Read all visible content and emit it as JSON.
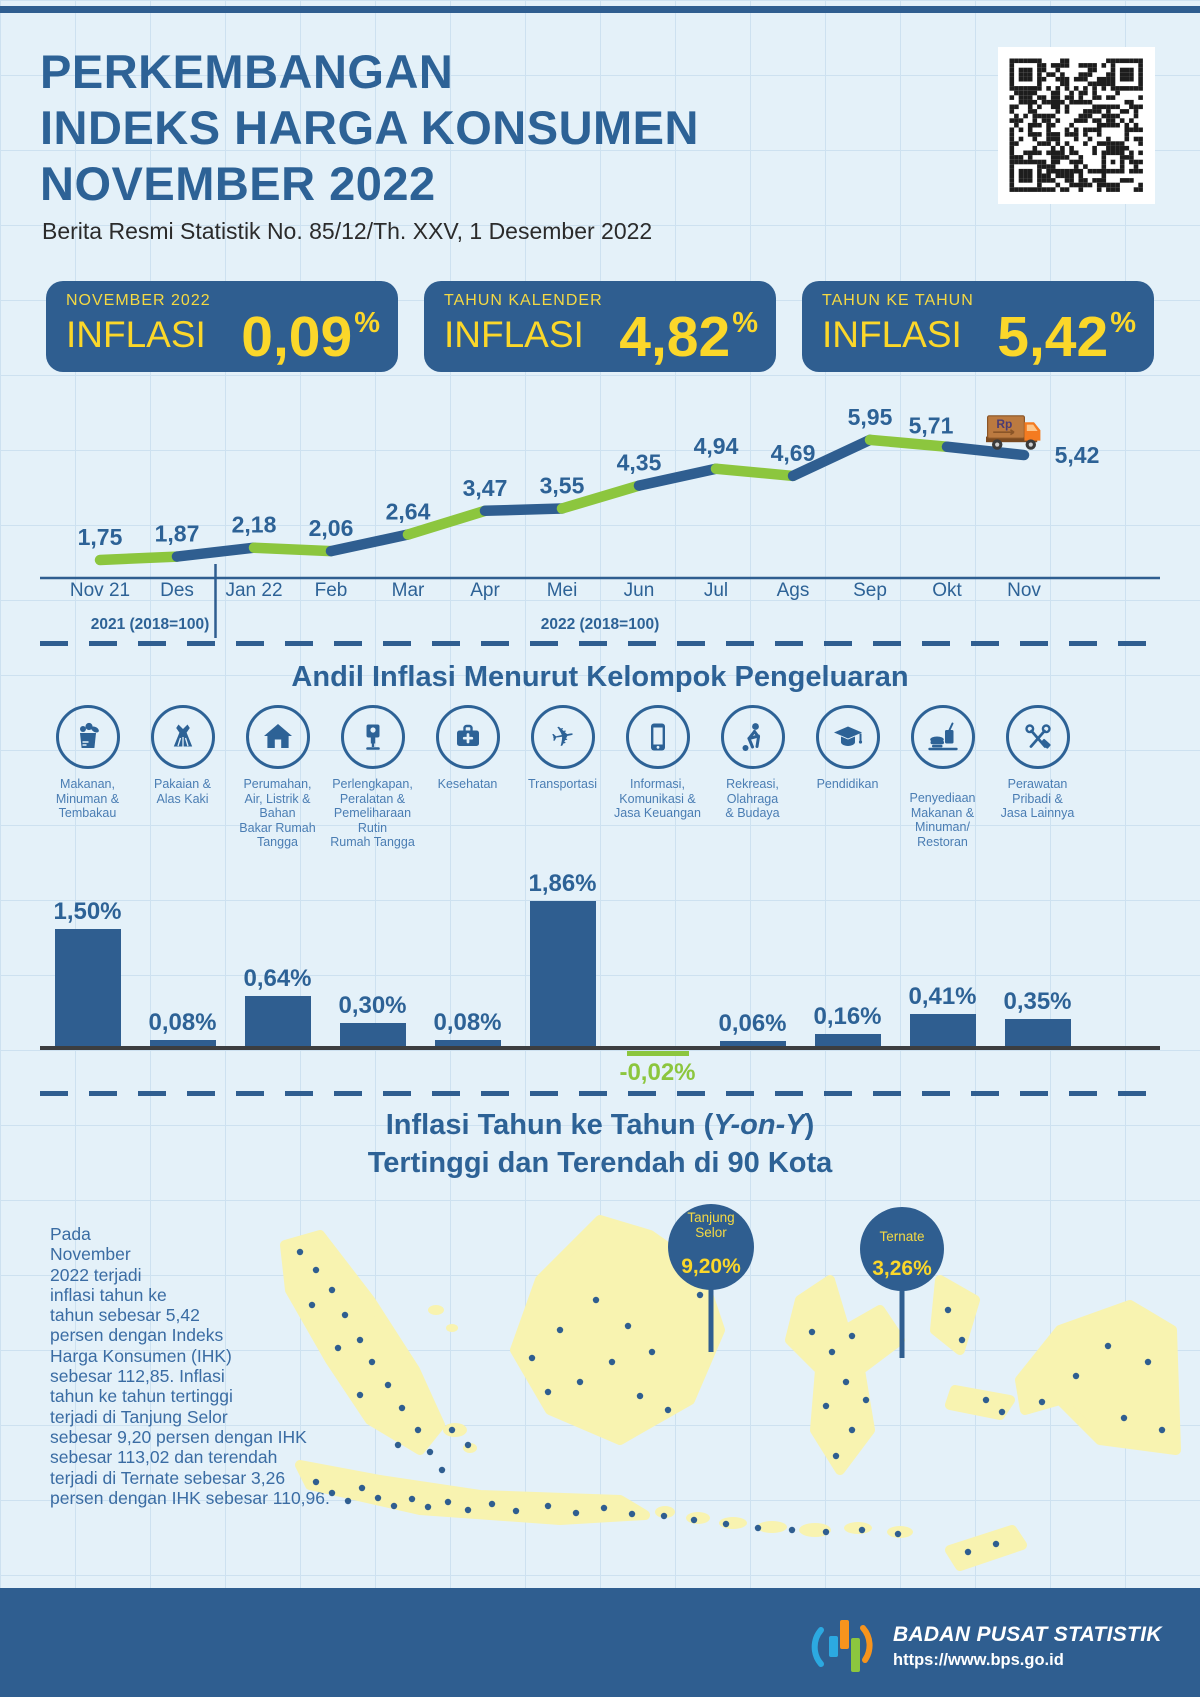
{
  "header": {
    "title_lines": [
      "PERKEMBANGAN",
      "INDEKS HARGA KONSUMEN",
      "NOVEMBER 2022"
    ],
    "subtitle": "Berita Resmi Statistik No. 85/12/Th. XXV, 1 Desember 2022",
    "qr_icon": "qr-code-icon"
  },
  "stat_cards": [
    {
      "period": "NOVEMBER 2022",
      "label": "INFLASI",
      "value": "0,09",
      "unit": "%"
    },
    {
      "period": "TAHUN KALENDER",
      "label": "INFLASI",
      "value": "4,82",
      "unit": "%"
    },
    {
      "period": "TAHUN KE TAHUN",
      "label": "INFLASI",
      "value": "5,42",
      "unit": "%"
    }
  ],
  "chart_data": [
    {
      "type": "line",
      "categories": [
        "Nov 21",
        "Des",
        "Jan 22",
        "Feb",
        "Mar",
        "Apr",
        "Mei",
        "Jun",
        "Jul",
        "Ags",
        "Sep",
        "Okt",
        "Nov"
      ],
      "values": [
        1.75,
        1.87,
        2.18,
        2.06,
        2.64,
        3.47,
        3.55,
        4.35,
        4.94,
        4.69,
        5.95,
        5.71,
        5.42
      ],
      "point_labels": [
        "1,75",
        "1,87",
        "2,18",
        "2,06",
        "2,64",
        "3,47",
        "3,55",
        "4,35",
        "4,94",
        "4,69",
        "5,95",
        "5,71",
        "5,42"
      ],
      "year_labels": [
        "2021 (2018=100)",
        "2022 (2018=100)"
      ],
      "ylim": [
        1.5,
        6.3
      ],
      "grid": "page-background",
      "legend_position": "none",
      "segment_colors": [
        "#8cc63e",
        "#2f5e90"
      ],
      "decoration": "rupiah-truck-icon"
    },
    {
      "type": "bar",
      "title": "Andil Inflasi Menurut Kelompok Pengeluaran",
      "categories": [
        "Makanan, Minuman & Tembakau",
        "Pakaian & Alas Kaki",
        "Perumahan, Air, Listrik & Bahan Bakar Rumah Tangga",
        "Perlengkapan, Peralatan & Pemeliharaan Rutin Rumah Tangga",
        "Kesehatan",
        "Transportasi",
        "Informasi, Komunikasi & Jasa Keuangan",
        "Rekreasi, Olahraga & Budaya",
        "Pendidikan",
        "Penyediaan Makanan & Minuman/Restoran",
        "Perawatan Pribadi & Jasa Lainnya"
      ],
      "values": [
        1.5,
        0.08,
        0.64,
        0.3,
        0.08,
        1.86,
        -0.02,
        0.06,
        0.16,
        0.41,
        0.35
      ],
      "value_labels": [
        "1,50%",
        "0,08%",
        "0,64%",
        "0,30%",
        "0,08%",
        "1,86%",
        "-0,02%",
        "0,06%",
        "0,16%",
        "0,41%",
        "0,35%"
      ],
      "bar_color": "#2f5e90",
      "negative_color": "#8cc63e",
      "xlabel": "",
      "ylabel": ""
    }
  ],
  "groups": [
    {
      "icon": "food-icon",
      "label": "Makanan,\nMinuman &\nTembakau"
    },
    {
      "icon": "clothing-icon",
      "label": "Pakaian &\nAlas Kaki"
    },
    {
      "icon": "housing-icon",
      "label": "Perumahan,\nAir, Listrik &\nBahan\nBakar Rumah\nTangga"
    },
    {
      "icon": "household-equipment-icon",
      "label": "Perlengkapan,\nPeralatan &\nPemeliharaan\nRutin\nRumah Tangga"
    },
    {
      "icon": "health-icon",
      "label": "Kesehatan"
    },
    {
      "icon": "transport-icon",
      "label": "Transportasi"
    },
    {
      "icon": "information-icon",
      "label": "Informasi,\nKomunikasi &\nJasa Keuangan"
    },
    {
      "icon": "recreation-icon",
      "label": "Rekreasi,\nOlahraga\n& Budaya"
    },
    {
      "icon": "education-icon",
      "label": "Pendidikan"
    },
    {
      "icon": "restaurant-icon",
      "label": "Penyediaan\nMakanan &\nMinuman/\nRestoran",
      "offset_label": true
    },
    {
      "icon": "personal-care-icon",
      "label": "Perawatan\nPribadi &\nJasa Lainnya"
    }
  ],
  "map_section": {
    "title1_pre": "Inflasi Tahun ke Tahun (",
    "title1_italic": "Y-on-Y",
    "title1_post": ")",
    "title2": "Tertinggi dan Terendah di 90 Kota",
    "paragraph": "Pada\nNovember\n2022 terjadi\ninflasi tahun ke\ntahun sebesar 5,42\npersen dengan Indeks\nHarga Konsumen (IHK)\nsebesar 112,85. Inflasi\ntahun ke tahun tertinggi\nterjadi di Tanjung Selor\nsebesar 9,20 persen dengan IHK\nsebesar 113,02 dan terendah\nterjadi di Ternate sebesar 3,26\npersen dengan IHK sebesar 110,96.",
    "markers": [
      {
        "city_lines": [
          "Tanjung",
          "Selor"
        ],
        "value": "9,20%"
      },
      {
        "city_lines": [
          "Ternate"
        ],
        "value": "3,26%"
      }
    ]
  },
  "footer": {
    "org": "BADAN PUSAT STATISTIK",
    "url": "https://www.bps.go.id",
    "logo_icon": "bps-logo-icon"
  },
  "colors": {
    "navy": "#2f5e90",
    "title_blue": "#2d6296",
    "yellow": "#fbd72a",
    "green": "#8cc63e",
    "map_island": "#f8f3b0",
    "baseline_dark": "#3c3e40",
    "group_label_blue": "#4a7db3",
    "paragraph_blue": "#3a6ca3"
  }
}
